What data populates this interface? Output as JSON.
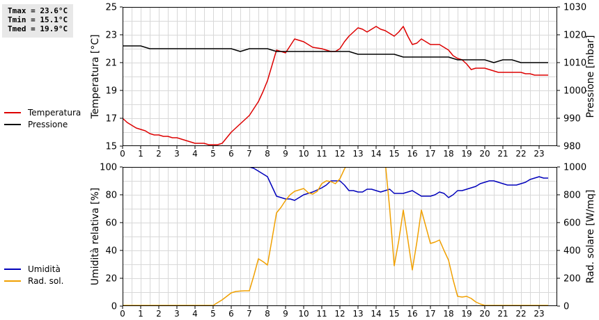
{
  "stats": {
    "tmax": "Tmax = 23.6°C",
    "tmin": "Tmin = 15.1°C",
    "tmed": "Tmed = 19.9°C"
  },
  "chart_data": [
    {
      "type": "line",
      "title": "",
      "xlabel": "",
      "xlim": [
        0,
        24
      ],
      "x_ticks": [
        "0",
        "1",
        "2",
        "3",
        "4",
        "5",
        "6",
        "7",
        "8",
        "9",
        "10",
        "11",
        "12",
        "13",
        "14",
        "15",
        "16",
        "17",
        "18",
        "19",
        "20",
        "21",
        "22",
        "23"
      ],
      "ylabel_left": "Temperatura [°C]",
      "ylim_left": [
        15,
        25
      ],
      "yticks_left": [
        "15",
        "17",
        "19",
        "21",
        "23",
        "25"
      ],
      "ylabel_right": "Pressione [mbar]",
      "ylim_right": [
        980,
        1030
      ],
      "yticks_right": [
        "980",
        "990",
        "1000",
        "1010",
        "1020",
        "1030"
      ],
      "grid": true,
      "legend_position": "left",
      "series": [
        {
          "name": "Temperatura",
          "color": "#dd0000",
          "axis": "left",
          "x": [
            0,
            0.25,
            0.5,
            0.75,
            1,
            1.25,
            1.5,
            1.75,
            2,
            2.25,
            2.5,
            2.75,
            3,
            3.25,
            3.5,
            3.75,
            4,
            4.25,
            4.5,
            4.75,
            5,
            5.25,
            5.5,
            5.75,
            6,
            6.25,
            6.5,
            6.75,
            7,
            7.25,
            7.5,
            7.75,
            8,
            8.25,
            8.5,
            8.75,
            9,
            9.25,
            9.5,
            9.75,
            10,
            10.5,
            11,
            11.25,
            11.5,
            11.75,
            12,
            12.25,
            12.5,
            12.75,
            13,
            13.25,
            13.5,
            13.75,
            14,
            14.25,
            14.5,
            14.75,
            15,
            15.25,
            15.5,
            15.75,
            16,
            16.25,
            16.5,
            16.75,
            17,
            17.25,
            17.5,
            17.75,
            18,
            18.25,
            18.5,
            18.75,
            19,
            19.25,
            19.5,
            19.75,
            20,
            20.25,
            20.5,
            20.75,
            21,
            21.25,
            21.5,
            21.75,
            22,
            22.25,
            22.5,
            22.75,
            23,
            23.25,
            23.5
          ],
          "values": [
            17.0,
            16.7,
            16.5,
            16.3,
            16.2,
            16.1,
            15.9,
            15.8,
            15.8,
            15.7,
            15.7,
            15.6,
            15.6,
            15.5,
            15.4,
            15.3,
            15.2,
            15.2,
            15.2,
            15.1,
            15.1,
            15.1,
            15.2,
            15.6,
            16.0,
            16.3,
            16.6,
            16.9,
            17.2,
            17.7,
            18.2,
            18.9,
            19.7,
            20.8,
            21.9,
            21.8,
            21.7,
            22.2,
            22.7,
            22.6,
            22.5,
            22.1,
            22.0,
            21.9,
            21.8,
            21.8,
            22.0,
            22.5,
            22.9,
            23.2,
            23.5,
            23.4,
            23.2,
            23.4,
            23.6,
            23.4,
            23.3,
            23.1,
            22.9,
            23.2,
            23.6,
            22.9,
            22.3,
            22.4,
            22.7,
            22.5,
            22.3,
            22.3,
            22.3,
            22.1,
            21.9,
            21.5,
            21.3,
            21.2,
            20.9,
            20.5,
            20.6,
            20.6,
            20.6,
            20.5,
            20.4,
            20.3,
            20.3,
            20.3,
            20.3,
            20.3,
            20.3,
            20.2,
            20.2,
            20.1,
            20.1,
            20.1,
            20.1
          ]
        },
        {
          "name": "Pressione",
          "color": "#000000",
          "axis": "right",
          "x": [
            0,
            0.5,
            1,
            1.25,
            1.5,
            2,
            3,
            4,
            5,
            6,
            6.25,
            6.5,
            6.75,
            7,
            7.5,
            8,
            8.25,
            8.5,
            9,
            10,
            11,
            12,
            12.5,
            12.75,
            13,
            14,
            15,
            15.25,
            15.5,
            16,
            17,
            18,
            18.25,
            18.5,
            19,
            19.5,
            20,
            20.25,
            20.5,
            20.75,
            21,
            21.25,
            21.5,
            21.75,
            22,
            23,
            23.5
          ],
          "values": [
            1016,
            1016,
            1016,
            1015.5,
            1015,
            1015,
            1015,
            1015,
            1015,
            1015,
            1014.5,
            1014,
            1014.5,
            1015,
            1015,
            1015,
            1014.5,
            1014,
            1014,
            1014,
            1014,
            1014,
            1014,
            1013.5,
            1013,
            1013,
            1013,
            1012.5,
            1012,
            1012,
            1012,
            1012,
            1011.5,
            1011,
            1011,
            1011,
            1011,
            1010.5,
            1010,
            1010.5,
            1011,
            1011,
            1011,
            1010.5,
            1010,
            1010,
            1010
          ]
        }
      ]
    },
    {
      "type": "line",
      "title": "",
      "xlabel": "",
      "xlim": [
        0,
        24
      ],
      "x_ticks": [
        "0",
        "1",
        "2",
        "3",
        "4",
        "5",
        "6",
        "7",
        "8",
        "9",
        "10",
        "11",
        "12",
        "13",
        "14",
        "15",
        "16",
        "17",
        "18",
        "19",
        "20",
        "21",
        "22",
        "23"
      ],
      "ylabel_left": "Umidità relativa [%]",
      "ylim_left": [
        0,
        100
      ],
      "yticks_left": [
        "0",
        "20",
        "40",
        "60",
        "80",
        "100"
      ],
      "ylabel_right": "Rad. solare [W/mq]",
      "ylim_right": [
        0,
        1000
      ],
      "yticks_right": [
        "0",
        "200",
        "400",
        "600",
        "800",
        "1000"
      ],
      "grid": true,
      "legend_position": "left",
      "series": [
        {
          "name": "Umidità",
          "color": "#0000bb",
          "axis": "left",
          "x": [
            0,
            1,
            2,
            3,
            4,
            5,
            6,
            6.5,
            7,
            7.25,
            7.5,
            7.75,
            8,
            8.25,
            8.5,
            8.75,
            9,
            9.25,
            9.5,
            9.75,
            10,
            10.5,
            11,
            11.25,
            11.5,
            11.75,
            12,
            12.25,
            12.5,
            12.75,
            13,
            13.25,
            13.5,
            13.75,
            14,
            14.25,
            14.5,
            14.75,
            15,
            15.25,
            15.5,
            15.75,
            16,
            16.25,
            16.5,
            16.75,
            17,
            17.25,
            17.5,
            17.75,
            18,
            18.25,
            18.5,
            18.75,
            19,
            19.25,
            19.5,
            19.75,
            20,
            20.25,
            20.5,
            20.75,
            21,
            21.25,
            21.5,
            21.75,
            22,
            22.25,
            22.5,
            22.75,
            23,
            23.25,
            23.5
          ],
          "values": [
            100,
            100,
            100,
            100,
            100,
            100,
            100,
            100,
            100,
            99,
            97,
            95,
            93,
            86,
            79,
            78,
            77,
            77,
            76,
            78,
            80,
            82,
            85,
            87,
            90,
            90,
            90,
            87,
            83,
            83,
            82,
            82,
            84,
            84,
            83,
            82,
            83,
            84,
            81,
            81,
            81,
            82,
            83,
            81,
            79,
            79,
            79,
            80,
            82,
            81,
            78,
            80,
            83,
            83,
            84,
            85,
            86,
            88,
            89,
            90,
            90,
            89,
            88,
            87,
            87,
            87,
            88,
            89,
            91,
            92,
            93,
            92,
            92
          ]
        },
        {
          "name": "Rad. sol.",
          "color": "#f0a000",
          "axis": "right",
          "x": [
            0,
            1,
            2,
            3,
            4,
            5,
            5.25,
            5.5,
            5.75,
            6,
            6.25,
            6.5,
            6.75,
            7,
            7.25,
            7.5,
            7.75,
            8,
            8.25,
            8.5,
            8.75,
            9,
            9.25,
            9.5,
            9.75,
            10,
            10.25,
            10.5,
            10.75,
            11,
            11.25,
            11.5,
            11.75,
            12,
            12.25,
            12.5,
            12.75,
            13,
            13.5,
            14,
            14.5,
            14.75,
            15,
            15.25,
            15.5,
            15.75,
            16,
            16.25,
            16.5,
            16.75,
            17,
            17.25,
            17.5,
            17.75,
            18,
            18.25,
            18.5,
            18.75,
            19,
            19.25,
            19.5,
            19.75,
            20,
            20.5,
            21,
            22,
            23,
            23.5
          ],
          "values": [
            5,
            5,
            5,
            5,
            5,
            5,
            25,
            45,
            70,
            95,
            105,
            108,
            110,
            110,
            220,
            340,
            320,
            295,
            480,
            670,
            710,
            760,
            800,
            825,
            835,
            845,
            815,
            805,
            825,
            880,
            900,
            895,
            880,
            915,
            985,
            1040,
            1080,
            1100,
            1100,
            1100,
            1040,
            700,
            290,
            470,
            690,
            480,
            260,
            460,
            690,
            570,
            450,
            460,
            475,
            400,
            330,
            190,
            70,
            65,
            70,
            55,
            30,
            15,
            5,
            5,
            5,
            5,
            5,
            5
          ]
        }
      ]
    }
  ]
}
